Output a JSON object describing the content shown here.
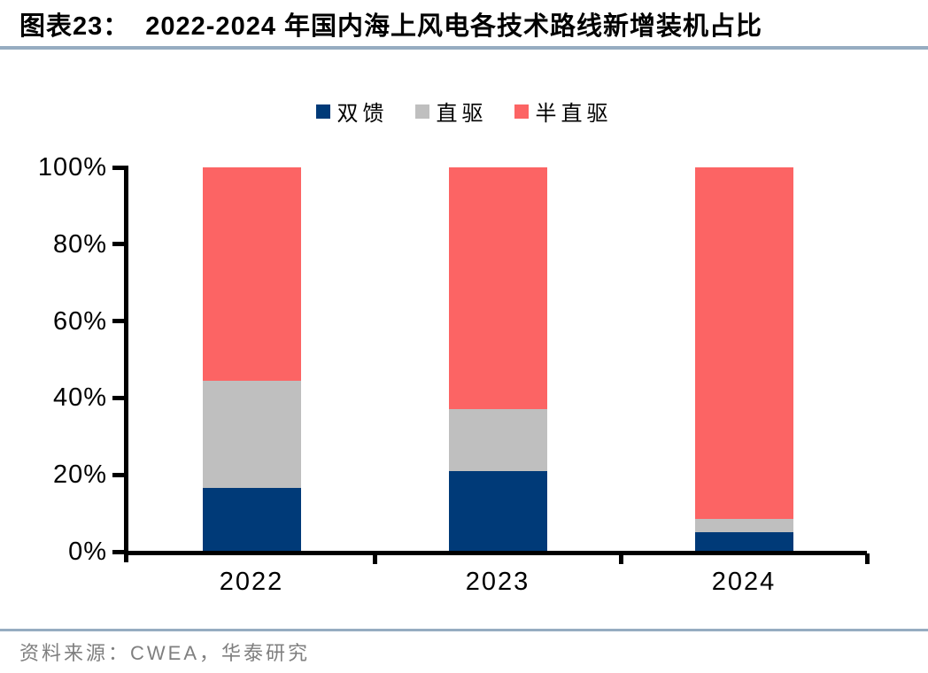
{
  "header": {
    "figure_label": "图表23：",
    "title": "2022-2024 年国内海上风电各技术路线新增装机占比"
  },
  "chart_data": {
    "type": "bar",
    "stacked": true,
    "title": "2022-2024 年国内海上风电各技术路线新增装机占比",
    "categories": [
      "2022",
      "2023",
      "2024"
    ],
    "series": [
      {
        "name": "双馈",
        "color": "#003A78",
        "values": [
          16.5,
          21.0,
          5.0
        ]
      },
      {
        "name": "直驱",
        "color": "#BFBFBF",
        "values": [
          28.0,
          16.0,
          3.5
        ]
      },
      {
        "name": "半直驱",
        "color": "#FC6464",
        "values": [
          55.5,
          63.0,
          91.5
        ]
      }
    ],
    "xlabel": "",
    "ylabel": "",
    "ylim": [
      0,
      100
    ],
    "yticks": [
      "0%",
      "20%",
      "40%",
      "60%",
      "80%",
      "100%"
    ],
    "grid": false,
    "legend_position": "top"
  },
  "footer": {
    "source_label": "资料来源：",
    "source_text": "CWEA，华泰研究"
  },
  "colors": {
    "divider": "#96ACC1",
    "axis": "#000000",
    "source_text": "#7F7F7F"
  }
}
